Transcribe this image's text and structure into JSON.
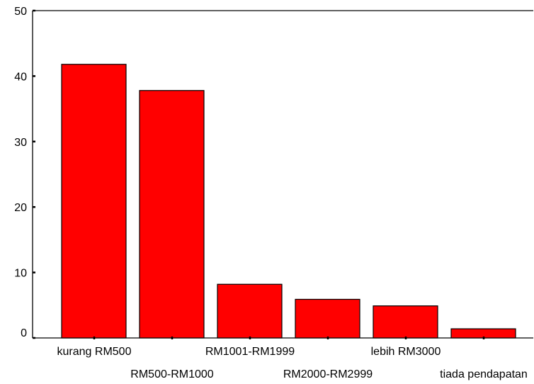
{
  "chart_data": {
    "type": "bar",
    "title": "",
    "xlabel": "",
    "ylabel": "",
    "categories": [
      "kurang RM500",
      "RM500-RM1000",
      "RM1001-RM1999",
      "RM2000-RM2999",
      "lebih RM3000",
      "tiada pendapatan"
    ],
    "values": [
      41.8,
      37.8,
      8.2,
      5.9,
      4.9,
      1.4
    ],
    "ylim": [
      0,
      50
    ],
    "yticks": [
      0,
      10,
      20,
      30,
      40,
      50
    ],
    "grid": false,
    "colors": {
      "bar_fill": "#ff0000",
      "bar_stroke": "#000000",
      "axis": "#000000",
      "background": "#ffffff"
    }
  }
}
